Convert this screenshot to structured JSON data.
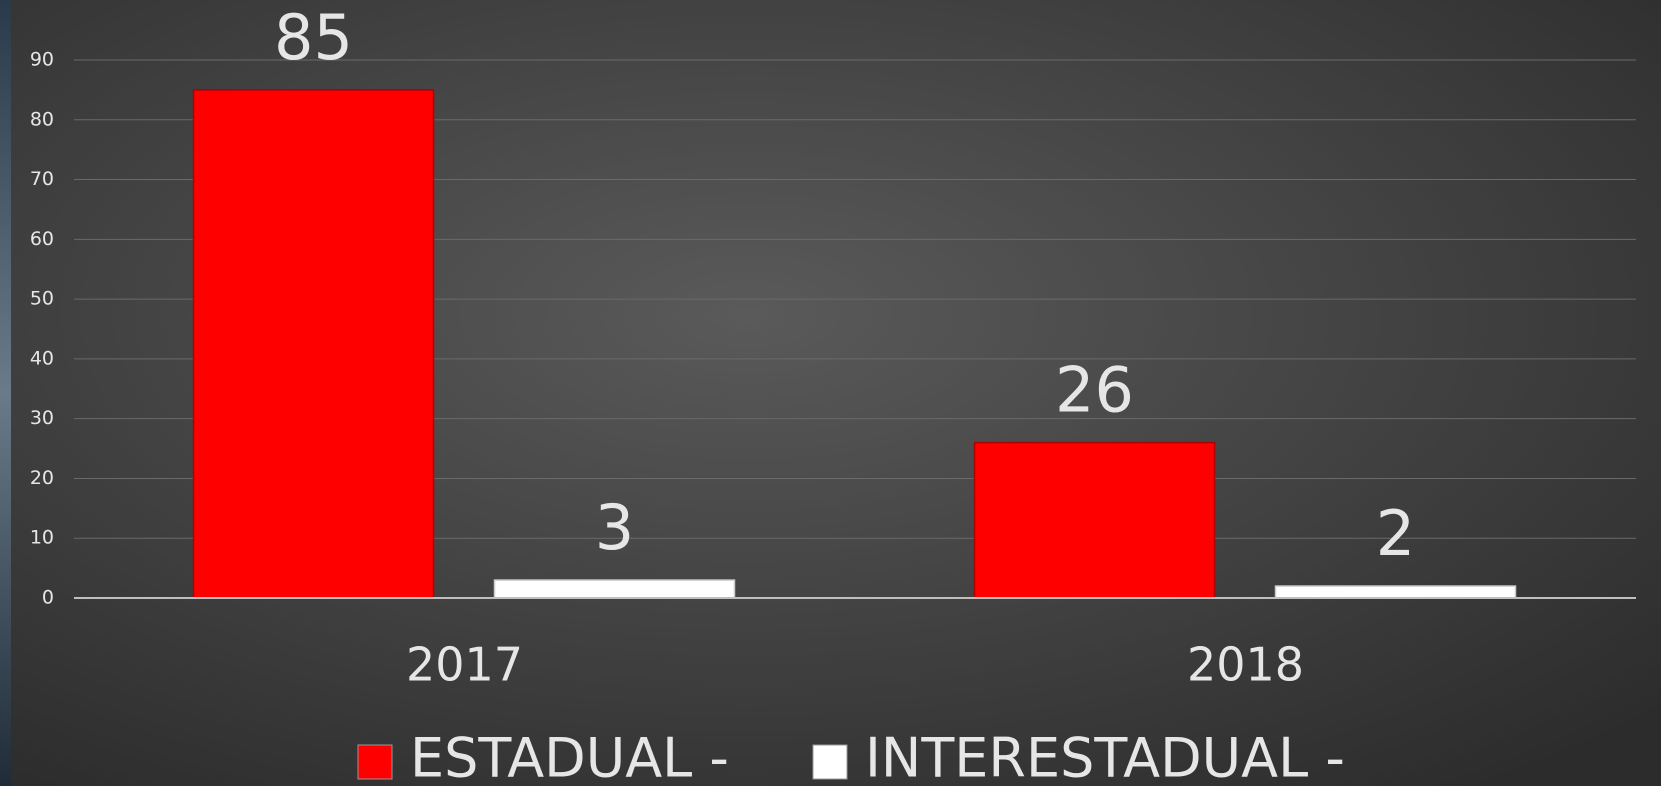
{
  "chart_data": {
    "type": "bar",
    "categories": [
      "2017",
      "2018"
    ],
    "series": [
      {
        "name": "ESTADUAL -",
        "color": "#ff0000",
        "values": [
          85,
          26
        ]
      },
      {
        "name": "INTERESTADUAL -",
        "color": "#ffffff",
        "values": [
          3,
          2
        ]
      }
    ],
    "ylim": [
      0,
      90
    ],
    "yticks": [
      0,
      10,
      20,
      30,
      40,
      50,
      60,
      70,
      80,
      90
    ],
    "grid": true,
    "legend": "bottom"
  }
}
